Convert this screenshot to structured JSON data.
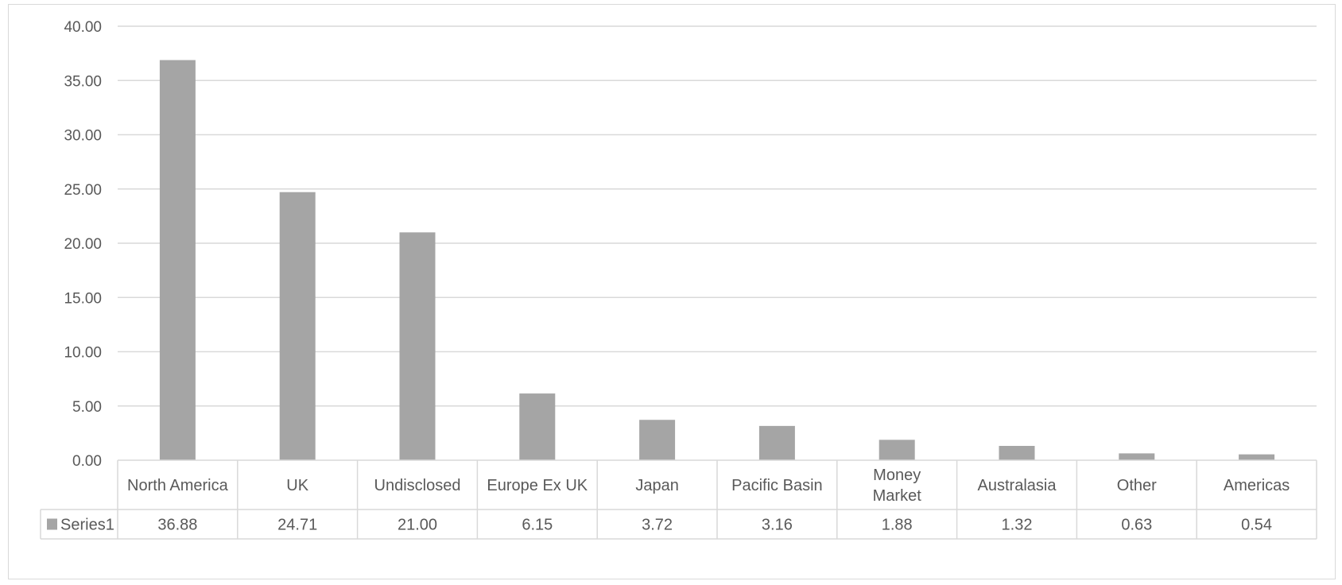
{
  "chart_data": {
    "type": "bar",
    "title": "",
    "xlabel": "",
    "ylabel": "",
    "categories": [
      [
        "North America"
      ],
      [
        "UK"
      ],
      [
        "Undisclosed"
      ],
      [
        "Europe Ex UK"
      ],
      [
        "Japan"
      ],
      [
        "Pacific Basin"
      ],
      [
        "Money",
        "Market"
      ],
      [
        "Australasia"
      ],
      [
        "Other"
      ],
      [
        "Americas"
      ]
    ],
    "series": [
      {
        "name": "Series1",
        "color": "#a5a5a5",
        "values": [
          36.88,
          24.71,
          21.0,
          6.15,
          3.72,
          3.16,
          1.88,
          1.32,
          0.63,
          0.54
        ],
        "display_values": [
          "36.88",
          "24.71",
          "21.00",
          "6.15",
          "3.72",
          "3.16",
          "1.88",
          "1.32",
          "0.63",
          "0.54"
        ]
      }
    ],
    "ylim": [
      0,
      40
    ],
    "yticks": [
      "0.00",
      "5.00",
      "10.00",
      "15.00",
      "20.00",
      "25.00",
      "30.00",
      "35.00",
      "40.00"
    ],
    "grid": true,
    "legend": "data-table",
    "data_table": true,
    "colors": {
      "bar": "#a5a5a5",
      "grid": "#d9d9d9",
      "text": "#595959"
    }
  }
}
